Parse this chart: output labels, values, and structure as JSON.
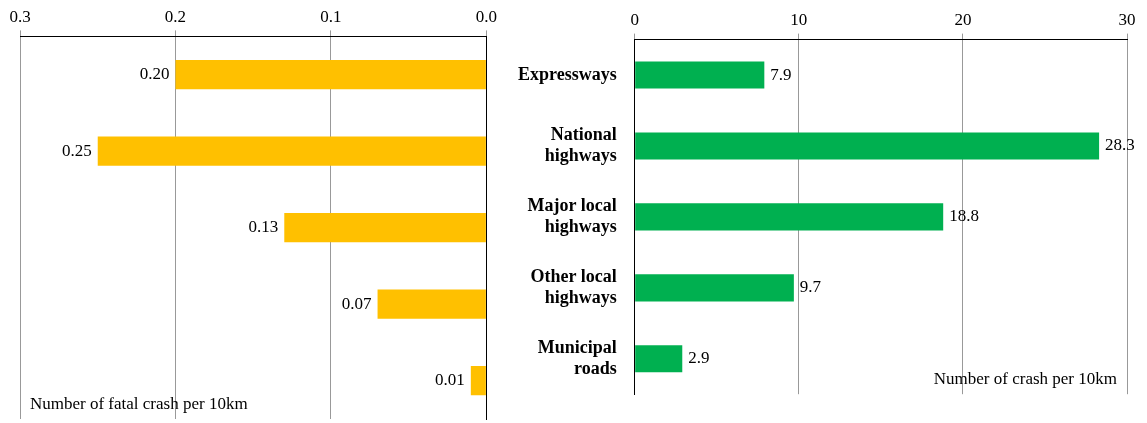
{
  "chart_data": [
    {
      "type": "bar",
      "orientation": "horizontal",
      "xlabel": "Number of fatal crash per 10km",
      "categories": [
        null,
        null,
        null,
        null,
        null
      ],
      "values": [
        0.2,
        0.25,
        0.13,
        0.07,
        0.01
      ],
      "value_labels": [
        "0.20",
        "0.25",
        "0.13",
        "0.07",
        "0.01"
      ],
      "color": "#ffc000",
      "xlim": [
        0.3,
        0
      ],
      "xticks": [
        {
          "value": 0.3,
          "label": "0.3"
        },
        {
          "value": 0.2,
          "label": "0.2"
        },
        {
          "value": 0.1,
          "label": "0.1"
        },
        {
          "value": 0,
          "label": "0.0"
        }
      ],
      "grid": "x",
      "tick_labels": "x"
    },
    {
      "type": "bar",
      "orientation": "horizontal",
      "xlabel": "Number of crash per 10km",
      "categories": [
        "Expressways",
        "National highways",
        "Major local highways",
        "Other local highways",
        "Municipal roads"
      ],
      "values": [
        7.9,
        28.3,
        18.8,
        9.7,
        2.9
      ],
      "value_labels": [
        "7.9",
        "28.3",
        "18.8",
        "9.7",
        "2.9"
      ],
      "color": "#00b050",
      "xlim": [
        0,
        30
      ],
      "xticks": [
        0,
        10,
        20,
        30
      ],
      "grid": "x"
    }
  ]
}
